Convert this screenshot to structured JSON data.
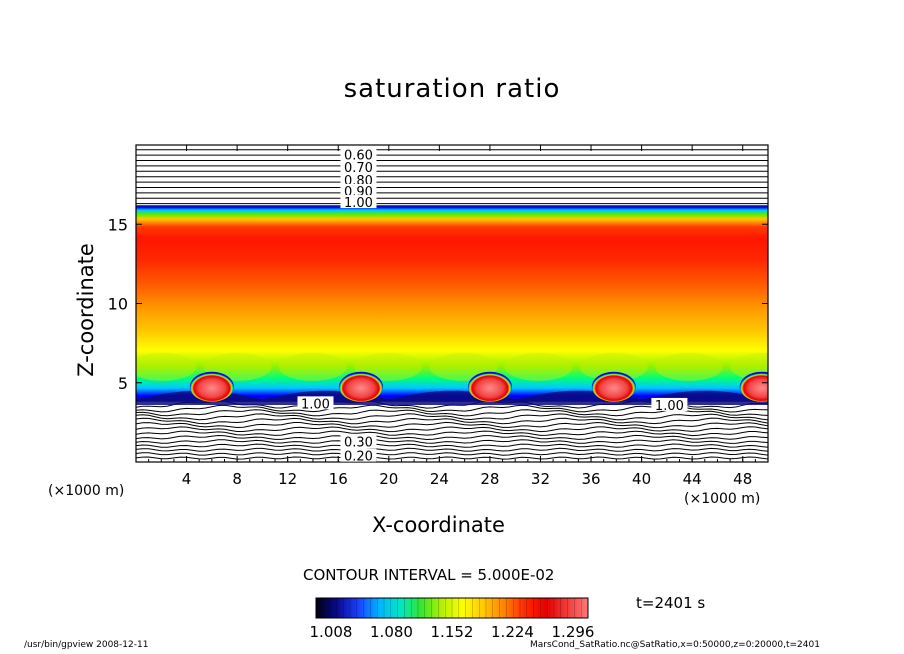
{
  "chart_data": {
    "type": "heatmap",
    "title": "saturation ratio",
    "xlabel": "X-coordinate",
    "ylabel": "Z-coordinate",
    "x_unit_left": "(×1000 m)",
    "x_unit_right": "(×1000 m)",
    "xlim": [
      0,
      50
    ],
    "ylim": [
      0,
      20
    ],
    "x_ticks": [
      4,
      8,
      12,
      16,
      20,
      24,
      28,
      32,
      36,
      40,
      44,
      48
    ],
    "y_ticks": [
      5,
      10,
      15
    ],
    "x_tick_labels": [
      "4",
      "8",
      "12",
      "16",
      "20",
      "24",
      "28",
      "32",
      "36",
      "40",
      "44",
      "48"
    ],
    "y_tick_labels": [
      "5",
      "10",
      "15"
    ],
    "contour_labels_upper": [
      {
        "text": "0.60",
        "z": 19.4
      },
      {
        "text": "0.70",
        "z": 18.6
      },
      {
        "text": "0.80",
        "z": 17.8
      },
      {
        "text": "0.90",
        "z": 17.1
      },
      {
        "text": "1.00",
        "z": 16.4
      }
    ],
    "contour_labels_lower": [
      {
        "text": "0.30",
        "z": 1.3
      },
      {
        "text": "0.20",
        "z": 0.4
      }
    ],
    "contour_labels_1_00": [
      {
        "text": "1.00",
        "x": 14.2,
        "z": 3.7
      },
      {
        "text": "1.00",
        "x": 42.2,
        "z": 3.6
      }
    ],
    "supersaturated_band_z": [
      3.8,
      16.2
    ],
    "cloud_cells_x": [
      6.0,
      17.8,
      28.0,
      37.8,
      49.5
    ],
    "colorbar": {
      "min": 1.008,
      "max": 1.296,
      "tick_labels": [
        "1.008",
        "1.080",
        "1.152",
        "1.224",
        "1.296"
      ],
      "colors": [
        "#000010",
        "#0a0a8c",
        "#1c3cff",
        "#00b4ff",
        "#00e6c8",
        "#32e632",
        "#b4f000",
        "#ffff00",
        "#ffc800",
        "#ff8200",
        "#ff2800",
        "#e60000",
        "#f03c3c",
        "#ff7878"
      ]
    },
    "contour_interval": "CONTOUR INTERVAL = 5.000E-02",
    "time_label": "t=2401 s"
  },
  "footer": {
    "left": "/usr/bin/gpview   2008-12-11",
    "right": "MarsCond_SatRatio.nc@SatRatio,x=0:50000,z=0:20000,t=2401"
  }
}
